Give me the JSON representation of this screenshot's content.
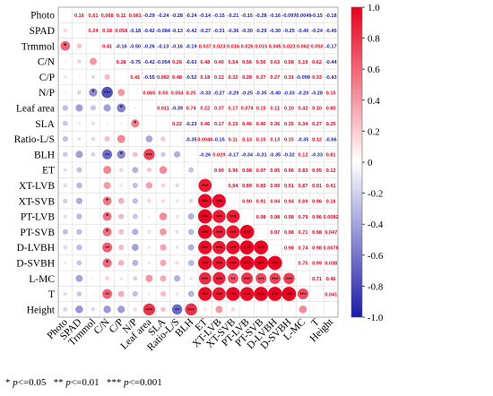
{
  "chart_data": {
    "type": "heatmap",
    "subtype": "correlation-matrix",
    "variables": [
      "Photo",
      "SPAD",
      "Trmmol",
      "C/N",
      "C/P",
      "N/P",
      "Leaf area",
      "SLA",
      "Ratio-L/S",
      "BLH",
      "ET",
      "XT-LVB",
      "XT-SVB",
      "PT-LVB",
      "PT-SVB",
      "D-LVBH",
      "D-SVBH",
      "L-MC",
      "T",
      "Height"
    ],
    "upper_triangle_labels": [
      [
        "",
        "0.16",
        "0.61",
        "0.068",
        "0.11",
        "0.061",
        "-0.29",
        "-0.24",
        "-0.28",
        "-0.24",
        "-0.14",
        "-0.15",
        "-0.21",
        "-0.15",
        "-0.28",
        "-0.16",
        "-0.097",
        "-0.0049",
        "-0.15",
        "-0.18"
      ],
      [
        "",
        "",
        "0.24",
        "0.18",
        "0.058",
        "-0.18",
        "-0.42",
        "-0.084",
        "-0.13",
        "-0.42",
        "-0.27",
        "-0.31",
        "-0.36",
        "-0.30",
        "-0.29",
        "-0.30",
        "-0.25",
        "-0.40",
        "-0.24",
        "-0.45"
      ],
      [
        "",
        "",
        "",
        "0.41",
        "-0.16",
        "-0.50",
        "-0.26",
        "-0.13",
        "-0.16",
        "-0.19",
        "0.037",
        "0.023",
        "0.016",
        "0.026",
        "0.015",
        "0.045",
        "0.023",
        "0.062",
        "0.050",
        "-0.17"
      ],
      [
        "",
        "",
        "",
        "",
        "0.28",
        "-0.75",
        "-0.42",
        "-0.054",
        "0.26",
        "-0.63",
        "0.48",
        "0.40",
        "0.54",
        "0.56",
        "0.56",
        "0.63",
        "0.58",
        "0.19",
        "0.62",
        "-0.44"
      ],
      [
        "",
        "",
        "",
        "",
        "",
        "0.41",
        "-0.55",
        "0.082",
        "0.48",
        "-0.52",
        "0.18",
        "0.12",
        "0.32",
        "0.28",
        "0.27",
        "0.27",
        "0.31",
        "-0.099",
        "0.33",
        "-0.43"
      ],
      [
        "",
        "",
        "",
        "",
        "",
        "",
        "0.065",
        "0.50",
        "0.054",
        "0.25",
        "-0.33",
        "-0.27",
        "-0.29",
        "-0.25",
        "-0.35",
        "-0.40",
        "-0.33",
        "-0.20",
        "-0.28",
        "0.15"
      ],
      [
        "",
        "",
        "",
        "",
        "",
        "",
        "",
        "0.011",
        "-0.39",
        "0.74",
        "0.22",
        "0.37",
        "0.17",
        "0.074",
        "0.15",
        "0.11",
        "0.10",
        "0.42",
        "0.10",
        "0.80"
      ],
      [
        "",
        "",
        "",
        "",
        "",
        "",
        "",
        "",
        "0.22",
        "-0.23",
        "0.46",
        "0.17",
        "0.15",
        "0.46",
        "0.40",
        "0.36",
        "0.35",
        "0.34",
        "0.27",
        "0.25"
      ],
      [
        "",
        "",
        "",
        "",
        "",
        "",
        "",
        "",
        "",
        "-0.35",
        "0.0046",
        "-0.15",
        "0.11",
        "0.13",
        "0.15",
        "0.13",
        "0.15",
        "-0.35",
        "0.12",
        "-0.66"
      ],
      [
        "",
        "",
        "",
        "",
        "",
        "",
        "",
        "",
        "",
        "",
        "-0.26",
        "0.029",
        "-0.17",
        "-0.34",
        "-0.31",
        "-0.35",
        "-0.32",
        "0.12",
        "-0.33",
        "0.81"
      ],
      [
        "",
        "",
        "",
        "",
        "",
        "",
        "",
        "",
        "",
        "",
        "",
        "0.90",
        "0.96",
        "0.98",
        "0.97",
        "0.95",
        "0.96",
        "0.83",
        "0.95",
        "0.12"
      ],
      [
        "",
        "",
        "",
        "",
        "",
        "",
        "",
        "",
        "",
        "",
        "",
        "",
        "0.94",
        "0.89",
        "0.89",
        "0.90",
        "0.91",
        "0.87",
        "0.91",
        "0.41"
      ],
      [
        "",
        "",
        "",
        "",
        "",
        "",
        "",
        "",
        "",
        "",
        "",
        "",
        "",
        "0.90",
        "0.91",
        "0.94",
        "0.94",
        "0.69",
        "0.96",
        "0.16"
      ],
      [
        "",
        "",
        "",
        "",
        "",
        "",
        "",
        "",
        "",
        "",
        "",
        "",
        "",
        "",
        "0.98",
        "0.98",
        "0.98",
        "0.79",
        "0.96",
        "0.0082"
      ],
      [
        "",
        "",
        "",
        "",
        "",
        "",
        "",
        "",
        "",
        "",
        "",
        "",
        "",
        "",
        "",
        "0.97",
        "0.98",
        "0.71",
        "0.98",
        "0.047"
      ],
      [
        "",
        "",
        "",
        "",
        "",
        "",
        "",
        "",
        "",
        "",
        "",
        "",
        "",
        "",
        "",
        "",
        "0.98",
        "0.74",
        "0.98",
        "0.0078"
      ],
      [
        "",
        "",
        "",
        "",
        "",
        "",
        "",
        "",
        "",
        "",
        "",
        "",
        "",
        "",
        "",
        "",
        "",
        "0.75",
        "0.99",
        "0.038"
      ],
      [
        "",
        "",
        "",
        "",
        "",
        "",
        "",
        "",
        "",
        "",
        "",
        "",
        "",
        "",
        "",
        "",
        "",
        "",
        "0.71",
        "0.46"
      ],
      [
        "",
        "",
        "",
        "",
        "",
        "",
        "",
        "",
        "",
        "",
        "",
        "",
        "",
        "",
        "",
        "",
        "",
        "",
        "",
        "0.041"
      ],
      [
        "",
        "",
        "",
        "",
        "",
        "",
        "",
        "",
        "",
        "",
        "",
        "",
        "",
        "",
        "",
        "",
        "",
        "",
        "",
        ""
      ]
    ],
    "lower_triangle": "circles sized and colored by correlation; stars mark significance",
    "colorbar": {
      "min": -1.0,
      "max": 1.0,
      "ticks": [
        "1.0",
        "0.8",
        "0.6",
        "0.4",
        "0.2",
        "0",
        "-0.2",
        "-0.4",
        "-0.6",
        "-0.8",
        "-1.0"
      ]
    },
    "colors": {
      "positive": "#e8001c",
      "negative": "#1a1aa8",
      "neutral": "#ffffff"
    },
    "significance_legend": [
      {
        "stars": "*",
        "op": "p",
        "rel": "<=0.05"
      },
      {
        "stars": "**",
        "op": "p",
        "rel": "<=0.01"
      },
      {
        "stars": "***",
        "op": "p",
        "rel": "<=0.001"
      }
    ]
  }
}
